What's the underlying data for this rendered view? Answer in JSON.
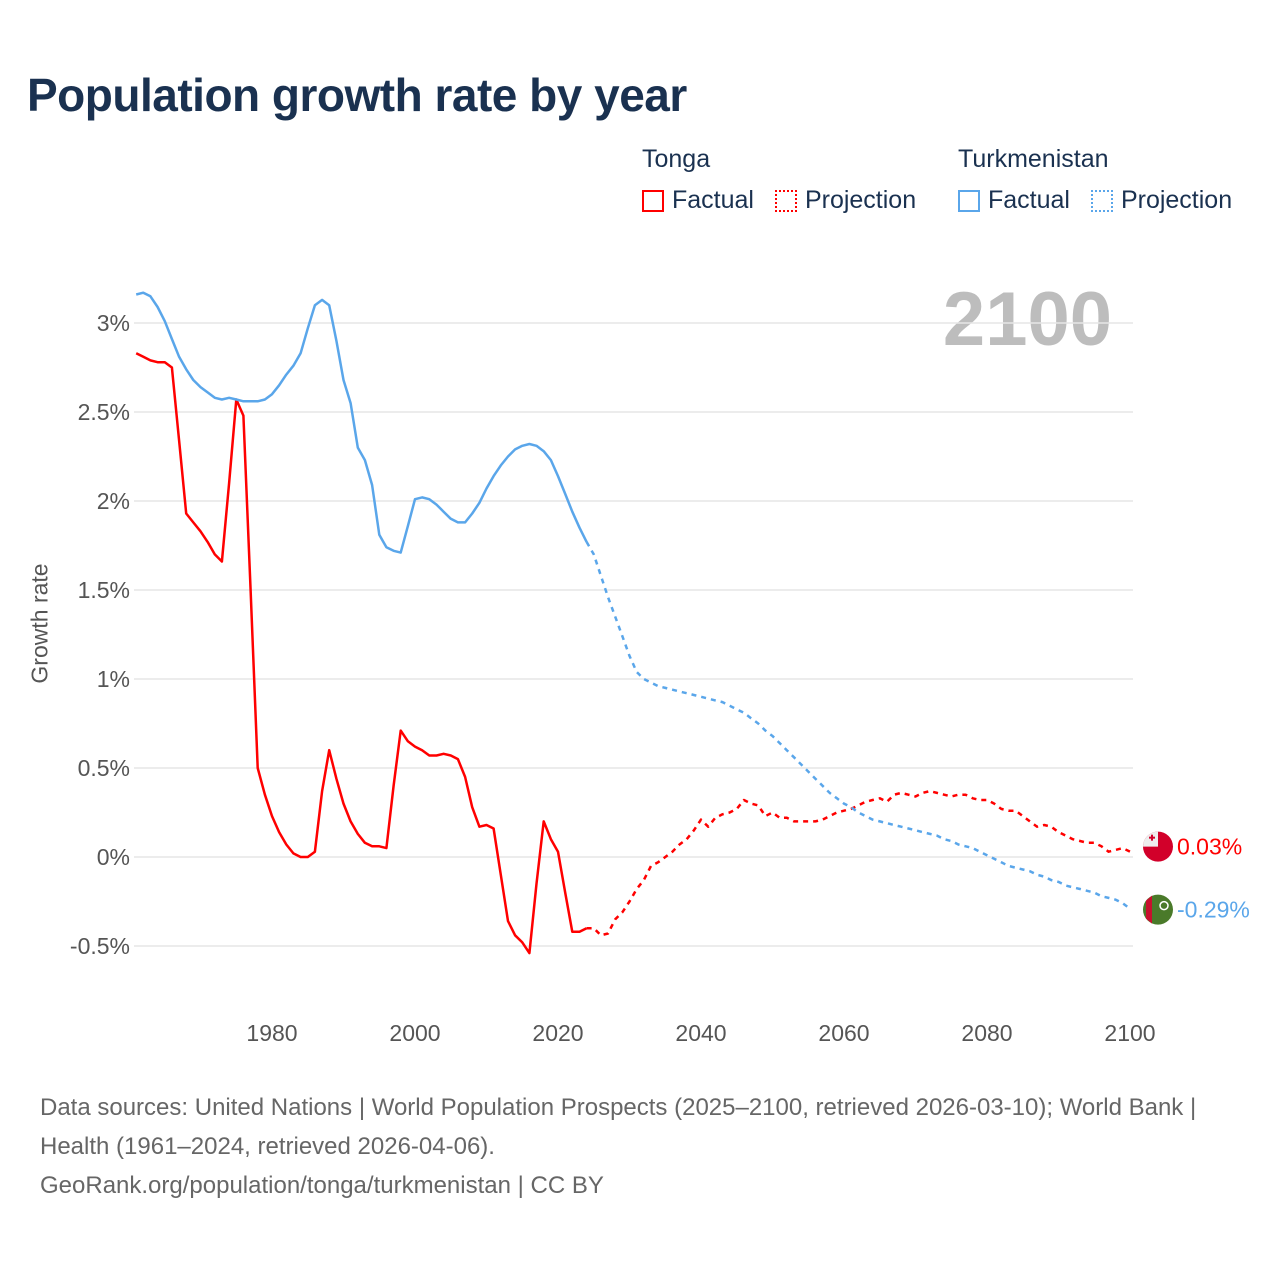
{
  "title": "Population growth rate by year",
  "year_display": "2100",
  "legend": [
    {
      "group": "Tonga",
      "factual": "Factual",
      "projection": "Projection",
      "color": "#ff0000"
    },
    {
      "group": "Turkmenistan",
      "factual": "Factual",
      "projection": "Projection",
      "color": "#5aa6ea"
    }
  ],
  "footer": {
    "sources": "Data sources: United Nations | World Population Prospects (2025–2100, retrieved 2026-03-10); World Bank | Health (1961–2024, retrieved 2026-04-06).",
    "link": "GeoRank.org/population/tonga/turkmenistan | CC BY"
  },
  "chart_data": {
    "type": "line",
    "title": "Population growth rate by year",
    "xlabel": "",
    "ylabel": "Growth rate",
    "xlim": [
      1961,
      2100
    ],
    "ylim": [
      -0.7,
      3.2
    ],
    "x_ticks": [
      "1980",
      "2000",
      "2020",
      "2040",
      "2060",
      "2080",
      "2100"
    ],
    "y_ticks": [
      "-0.5%",
      "0%",
      "0.5%",
      "1%",
      "1.5%",
      "2%",
      "2.5%",
      "3%"
    ],
    "grid": true,
    "series": [
      {
        "name": "Tonga Factual",
        "country": "Tonga",
        "color": "#ff0000",
        "dashed": false,
        "start_year": 1961,
        "values": [
          2.83,
          2.81,
          2.79,
          2.78,
          2.78,
          2.75,
          2.34,
          1.93,
          1.88,
          1.83,
          1.77,
          1.7,
          1.66,
          2.1,
          2.57,
          2.48,
          1.5,
          0.5,
          0.35,
          0.23,
          0.14,
          0.07,
          0.02,
          0.0,
          0.0,
          0.03,
          0.37,
          0.6,
          0.44,
          0.3,
          0.2,
          0.13,
          0.08,
          0.06,
          0.06,
          0.05,
          0.4,
          0.71,
          0.65,
          0.62,
          0.6,
          0.57,
          0.57,
          0.58,
          0.57,
          0.55,
          0.45,
          0.28,
          0.17,
          0.18,
          0.16,
          -0.1,
          -0.36,
          -0.44,
          -0.48,
          -0.54,
          -0.15,
          0.2,
          0.1,
          0.03,
          -0.2,
          -0.42,
          -0.42,
          -0.4
        ]
      },
      {
        "name": "Tonga Projection",
        "country": "Tonga",
        "color": "#ff0000",
        "dashed": true,
        "start_year": 2024,
        "values": [
          -0.4,
          -0.4,
          -0.44,
          -0.43,
          -0.35,
          -0.31,
          -0.25,
          -0.18,
          -0.13,
          -0.05,
          -0.03,
          0.0,
          0.03,
          0.07,
          0.1,
          0.15,
          0.21,
          0.17,
          0.22,
          0.24,
          0.25,
          0.27,
          0.32,
          0.3,
          0.29,
          0.23,
          0.25,
          0.22,
          0.22,
          0.2,
          0.2,
          0.2,
          0.2,
          0.21,
          0.23,
          0.25,
          0.26,
          0.27,
          0.29,
          0.31,
          0.32,
          0.33,
          0.31,
          0.35,
          0.36,
          0.35,
          0.34,
          0.36,
          0.37,
          0.36,
          0.35,
          0.34,
          0.35,
          0.35,
          0.33,
          0.32,
          0.32,
          0.3,
          0.27,
          0.26,
          0.26,
          0.23,
          0.2,
          0.17,
          0.18,
          0.17,
          0.14,
          0.12,
          0.1,
          0.09,
          0.08,
          0.08,
          0.06,
          0.03,
          0.04,
          0.05,
          0.03
        ]
      },
      {
        "name": "Turkmenistan Factual",
        "country": "Turkmenistan",
        "color": "#5aa6ea",
        "dashed": false,
        "start_year": 1961,
        "values": [
          3.16,
          3.17,
          3.15,
          3.09,
          3.01,
          2.91,
          2.81,
          2.74,
          2.68,
          2.64,
          2.61,
          2.58,
          2.57,
          2.58,
          2.57,
          2.56,
          2.56,
          2.56,
          2.57,
          2.6,
          2.65,
          2.71,
          2.76,
          2.83,
          2.97,
          3.1,
          3.13,
          3.1,
          2.9,
          2.68,
          2.55,
          2.3,
          2.23,
          2.09,
          1.81,
          1.74,
          1.72,
          1.71,
          1.86,
          2.01,
          2.02,
          2.01,
          1.98,
          1.94,
          1.9,
          1.88,
          1.88,
          1.93,
          1.99,
          2.07,
          2.14,
          2.2,
          2.25,
          2.29,
          2.31,
          2.32,
          2.31,
          2.28,
          2.23,
          2.14,
          2.04,
          1.94,
          1.85,
          1.77
        ]
      },
      {
        "name": "Turkmenistan Projection",
        "country": "Turkmenistan",
        "color": "#5aa6ea",
        "dashed": true,
        "start_year": 2024,
        "values": [
          1.77,
          1.7,
          1.58,
          1.46,
          1.35,
          1.24,
          1.13,
          1.04,
          1.0,
          0.98,
          0.96,
          0.95,
          0.94,
          0.93,
          0.92,
          0.91,
          0.9,
          0.89,
          0.88,
          0.87,
          0.85,
          0.83,
          0.81,
          0.78,
          0.75,
          0.71,
          0.68,
          0.64,
          0.6,
          0.56,
          0.52,
          0.48,
          0.44,
          0.4,
          0.36,
          0.33,
          0.3,
          0.28,
          0.25,
          0.23,
          0.21,
          0.2,
          0.19,
          0.18,
          0.17,
          0.16,
          0.15,
          0.14,
          0.13,
          0.12,
          0.1,
          0.09,
          0.07,
          0.06,
          0.05,
          0.03,
          0.01,
          -0.01,
          -0.03,
          -0.05,
          -0.06,
          -0.07,
          -0.08,
          -0.1,
          -0.11,
          -0.13,
          -0.14,
          -0.16,
          -0.17,
          -0.18,
          -0.19,
          -0.2,
          -0.22,
          -0.23,
          -0.24,
          -0.26,
          -0.29
        ]
      }
    ],
    "end_labels": [
      {
        "country": "Tonga",
        "text": "0.03%",
        "value": 0.03,
        "color": "#ff0000"
      },
      {
        "country": "Turkmenistan",
        "text": "-0.29%",
        "value": -0.29,
        "color": "#5aa6ea"
      }
    ]
  }
}
